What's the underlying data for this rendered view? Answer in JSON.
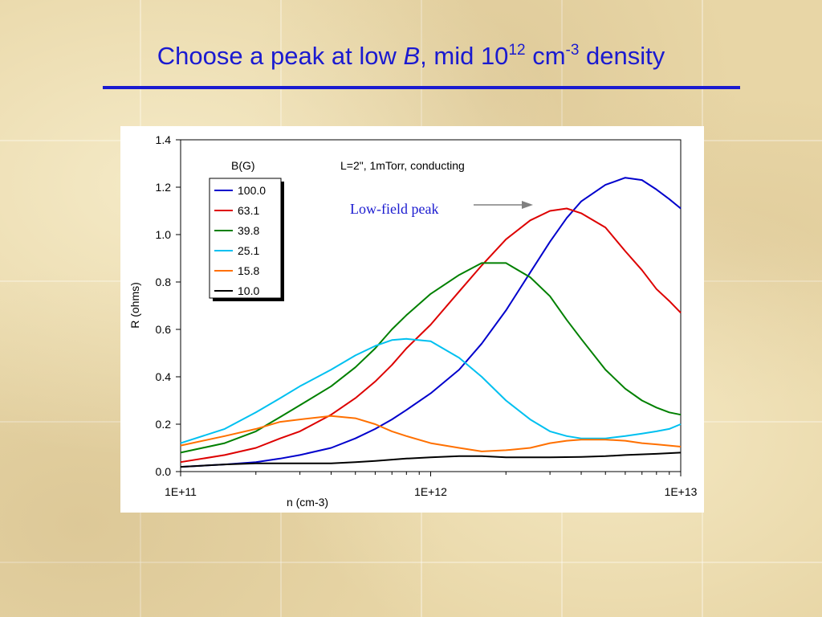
{
  "slide": {
    "title_parts": {
      "pre": "Choose a peak at low ",
      "italic": "B",
      "mid": ", mid 10",
      "sup1": "12",
      "mid2": " cm",
      "sup2": "-3",
      "post": " density"
    },
    "title_color": "#1a1ad0"
  },
  "chart_data": {
    "type": "line",
    "xscale": "log",
    "xlim": [
      100000000000.0,
      10000000000000.0
    ],
    "ylim": [
      0,
      1.4
    ],
    "xlabel": "n (cm-3)",
    "ylabel": "R (ohms)",
    "x_tick_labels": [
      "1E+11",
      "1E+12",
      "1E+13"
    ],
    "y_ticks": [
      0.0,
      0.2,
      0.4,
      0.6,
      0.8,
      1.0,
      1.2,
      1.4
    ],
    "y_tick_labels": [
      "0.0",
      "0.2",
      "0.4",
      "0.6",
      "0.8",
      "1.0",
      "1.2",
      "1.4"
    ],
    "grid": false,
    "legend_title": "B(G)",
    "legend_position": "top-left",
    "annotation_conditions": "L=2\", 1mTorr, conducting",
    "annotation_arrow": "Low-field peak",
    "annotation_arrow_color": "#1a1ad0",
    "series": [
      {
        "name": "100.0",
        "color": "#0000cc",
        "points": [
          [
            100000000000.0,
            0.02
          ],
          [
            150000000000.0,
            0.03
          ],
          [
            200000000000.0,
            0.04
          ],
          [
            250000000000.0,
            0.055
          ],
          [
            300000000000.0,
            0.07
          ],
          [
            400000000000.0,
            0.1
          ],
          [
            500000000000.0,
            0.14
          ],
          [
            600000000000.0,
            0.18
          ],
          [
            700000000000.0,
            0.22
          ],
          [
            800000000000.0,
            0.26
          ],
          [
            1000000000000.0,
            0.33
          ],
          [
            1300000000000.0,
            0.43
          ],
          [
            1600000000000.0,
            0.54
          ],
          [
            2000000000000.0,
            0.68
          ],
          [
            2500000000000.0,
            0.84
          ],
          [
            3000000000000.0,
            0.97
          ],
          [
            3500000000000.0,
            1.07
          ],
          [
            4000000000000.0,
            1.14
          ],
          [
            5000000000000.0,
            1.21
          ],
          [
            6000000000000.0,
            1.24
          ],
          [
            7000000000000.0,
            1.23
          ],
          [
            8000000000000.0,
            1.19
          ],
          [
            9000000000000.0,
            1.15
          ],
          [
            10000000000000.0,
            1.11
          ]
        ]
      },
      {
        "name": "63.1",
        "color": "#dd0000",
        "points": [
          [
            100000000000.0,
            0.04
          ],
          [
            150000000000.0,
            0.07
          ],
          [
            200000000000.0,
            0.1
          ],
          [
            250000000000.0,
            0.14
          ],
          [
            300000000000.0,
            0.17
          ],
          [
            400000000000.0,
            0.24
          ],
          [
            500000000000.0,
            0.31
          ],
          [
            600000000000.0,
            0.38
          ],
          [
            700000000000.0,
            0.45
          ],
          [
            800000000000.0,
            0.52
          ],
          [
            1000000000000.0,
            0.62
          ],
          [
            1300000000000.0,
            0.76
          ],
          [
            1600000000000.0,
            0.87
          ],
          [
            2000000000000.0,
            0.98
          ],
          [
            2500000000000.0,
            1.06
          ],
          [
            3000000000000.0,
            1.1
          ],
          [
            3500000000000.0,
            1.11
          ],
          [
            4000000000000.0,
            1.09
          ],
          [
            5000000000000.0,
            1.03
          ],
          [
            6000000000000.0,
            0.93
          ],
          [
            7000000000000.0,
            0.85
          ],
          [
            8000000000000.0,
            0.77
          ],
          [
            9000000000000.0,
            0.72
          ],
          [
            10000000000000.0,
            0.67
          ]
        ]
      },
      {
        "name": "39.8",
        "color": "#008000",
        "points": [
          [
            100000000000.0,
            0.08
          ],
          [
            150000000000.0,
            0.12
          ],
          [
            200000000000.0,
            0.17
          ],
          [
            250000000000.0,
            0.23
          ],
          [
            300000000000.0,
            0.28
          ],
          [
            400000000000.0,
            0.36
          ],
          [
            500000000000.0,
            0.44
          ],
          [
            600000000000.0,
            0.52
          ],
          [
            700000000000.0,
            0.6
          ],
          [
            800000000000.0,
            0.66
          ],
          [
            1000000000000.0,
            0.75
          ],
          [
            1300000000000.0,
            0.83
          ],
          [
            1600000000000.0,
            0.88
          ],
          [
            2000000000000.0,
            0.88
          ],
          [
            2500000000000.0,
            0.82
          ],
          [
            3000000000000.0,
            0.74
          ],
          [
            3500000000000.0,
            0.64
          ],
          [
            4000000000000.0,
            0.56
          ],
          [
            5000000000000.0,
            0.43
          ],
          [
            6000000000000.0,
            0.35
          ],
          [
            7000000000000.0,
            0.3
          ],
          [
            8000000000000.0,
            0.27
          ],
          [
            9000000000000.0,
            0.25
          ],
          [
            10000000000000.0,
            0.24
          ]
        ]
      },
      {
        "name": "25.1",
        "color": "#00c0f0",
        "points": [
          [
            100000000000.0,
            0.12
          ],
          [
            150000000000.0,
            0.18
          ],
          [
            200000000000.0,
            0.25
          ],
          [
            250000000000.0,
            0.31
          ],
          [
            300000000000.0,
            0.36
          ],
          [
            400000000000.0,
            0.43
          ],
          [
            500000000000.0,
            0.49
          ],
          [
            600000000000.0,
            0.53
          ],
          [
            700000000000.0,
            0.555
          ],
          [
            800000000000.0,
            0.56
          ],
          [
            1000000000000.0,
            0.55
          ],
          [
            1300000000000.0,
            0.48
          ],
          [
            1600000000000.0,
            0.4
          ],
          [
            2000000000000.0,
            0.3
          ],
          [
            2500000000000.0,
            0.22
          ],
          [
            3000000000000.0,
            0.17
          ],
          [
            3500000000000.0,
            0.15
          ],
          [
            4000000000000.0,
            0.14
          ],
          [
            5000000000000.0,
            0.14
          ],
          [
            6000000000000.0,
            0.15
          ],
          [
            7000000000000.0,
            0.16
          ],
          [
            8000000000000.0,
            0.17
          ],
          [
            9000000000000.0,
            0.18
          ],
          [
            10000000000000.0,
            0.2
          ]
        ]
      },
      {
        "name": "15.8",
        "color": "#ff7000",
        "points": [
          [
            100000000000.0,
            0.11
          ],
          [
            150000000000.0,
            0.15
          ],
          [
            200000000000.0,
            0.18
          ],
          [
            250000000000.0,
            0.21
          ],
          [
            300000000000.0,
            0.22
          ],
          [
            400000000000.0,
            0.235
          ],
          [
            500000000000.0,
            0.225
          ],
          [
            600000000000.0,
            0.2
          ],
          [
            700000000000.0,
            0.17
          ],
          [
            800000000000.0,
            0.15
          ],
          [
            1000000000000.0,
            0.12
          ],
          [
            1300000000000.0,
            0.1
          ],
          [
            1600000000000.0,
            0.085
          ],
          [
            2000000000000.0,
            0.09
          ],
          [
            2500000000000.0,
            0.1
          ],
          [
            3000000000000.0,
            0.12
          ],
          [
            3500000000000.0,
            0.13
          ],
          [
            4000000000000.0,
            0.135
          ],
          [
            5000000000000.0,
            0.135
          ],
          [
            6000000000000.0,
            0.13
          ],
          [
            7000000000000.0,
            0.12
          ],
          [
            8000000000000.0,
            0.115
          ],
          [
            9000000000000.0,
            0.11
          ],
          [
            10000000000000.0,
            0.105
          ]
        ]
      },
      {
        "name": "10.0",
        "color": "#000000",
        "points": [
          [
            100000000000.0,
            0.02
          ],
          [
            150000000000.0,
            0.03
          ],
          [
            200000000000.0,
            0.035
          ],
          [
            300000000000.0,
            0.035
          ],
          [
            400000000000.0,
            0.035
          ],
          [
            500000000000.0,
            0.04
          ],
          [
            600000000000.0,
            0.045
          ],
          [
            800000000000.0,
            0.055
          ],
          [
            1000000000000.0,
            0.06
          ],
          [
            1300000000000.0,
            0.065
          ],
          [
            1600000000000.0,
            0.065
          ],
          [
            2000000000000.0,
            0.06
          ],
          [
            2500000000000.0,
            0.06
          ],
          [
            3000000000000.0,
            0.06
          ],
          [
            4000000000000.0,
            0.062
          ],
          [
            5000000000000.0,
            0.065
          ],
          [
            6000000000000.0,
            0.07
          ],
          [
            8000000000000.0,
            0.075
          ],
          [
            10000000000000.0,
            0.08
          ]
        ]
      }
    ]
  }
}
